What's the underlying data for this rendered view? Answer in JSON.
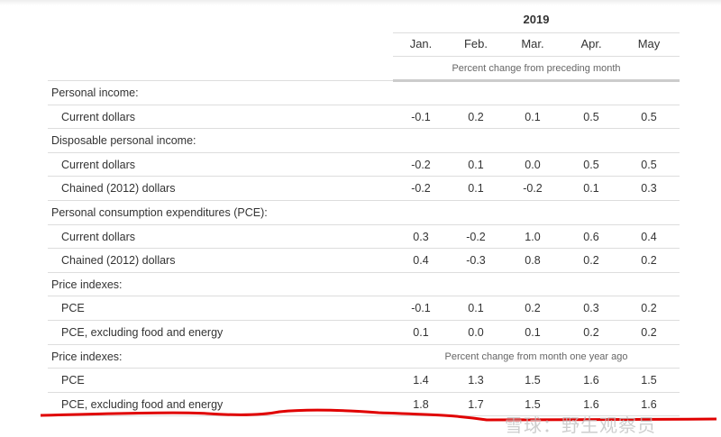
{
  "header": {
    "year": "2019",
    "months": [
      "Jan.",
      "Feb.",
      "Mar.",
      "Apr.",
      "May"
    ],
    "subtitle_monthly": "Percent change from preceding month"
  },
  "rows": [
    {
      "label": "Personal income:",
      "type": "section",
      "values": []
    },
    {
      "label": "Current dollars",
      "type": "item",
      "values": [
        "-0.1",
        "0.2",
        "0.1",
        "0.5",
        "0.5"
      ]
    },
    {
      "label": "Disposable personal income:",
      "type": "section",
      "values": []
    },
    {
      "label": "Current dollars",
      "type": "item",
      "values": [
        "-0.2",
        "0.1",
        "0.0",
        "0.5",
        "0.5"
      ]
    },
    {
      "label": "Chained (2012) dollars",
      "type": "item",
      "values": [
        "-0.2",
        "0.1",
        "-0.2",
        "0.1",
        "0.3"
      ]
    },
    {
      "label": "Personal consumption expenditures (PCE):",
      "type": "section",
      "values": []
    },
    {
      "label": "Current dollars",
      "type": "item",
      "values": [
        "0.3",
        "-0.2",
        "1.0",
        "0.6",
        "0.4"
      ]
    },
    {
      "label": "Chained (2012) dollars",
      "type": "item",
      "values": [
        "0.4",
        "-0.3",
        "0.8",
        "0.2",
        "0.2"
      ]
    },
    {
      "label": "Price indexes:",
      "type": "section",
      "values": []
    },
    {
      "label": "PCE",
      "type": "item",
      "values": [
        "-0.1",
        "0.1",
        "0.2",
        "0.3",
        "0.2"
      ]
    },
    {
      "label": "PCE, excluding food and energy",
      "type": "item",
      "values": [
        "0.1",
        "0.0",
        "0.1",
        "0.2",
        "0.2"
      ]
    },
    {
      "label": "Price indexes:",
      "type": "section",
      "note": "Percent change from month one year ago",
      "values": []
    },
    {
      "label": "PCE",
      "type": "item",
      "values": [
        "1.4",
        "1.3",
        "1.5",
        "1.6",
        "1.5"
      ]
    },
    {
      "label": "PCE, excluding food and energy",
      "type": "item",
      "values": [
        "1.8",
        "1.7",
        "1.5",
        "1.6",
        "1.6"
      ]
    }
  ],
  "watermark": "雪球：野生观察员",
  "colors": {
    "annotation_line": "#e00000"
  }
}
